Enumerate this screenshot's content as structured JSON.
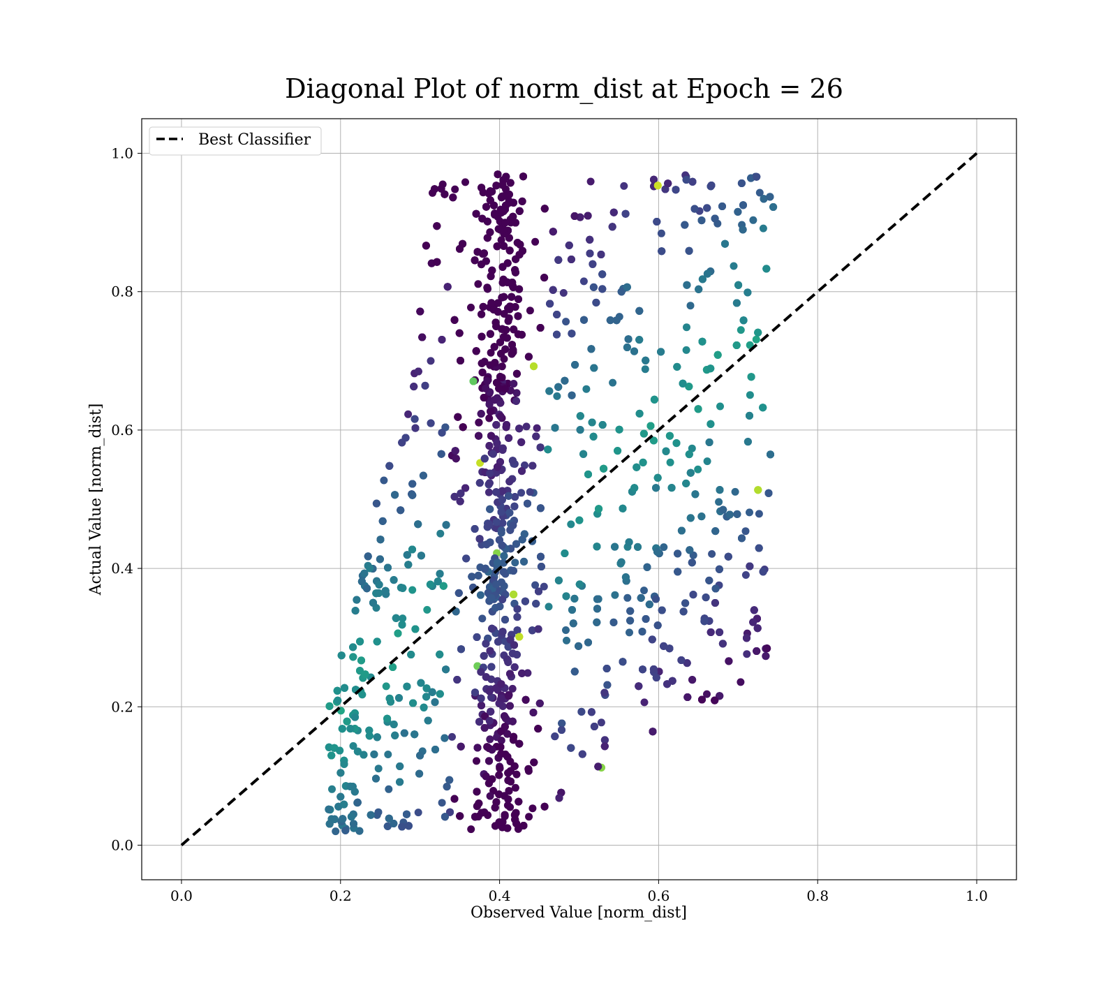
{
  "chart_data": {
    "type": "scatter",
    "title": "Diagonal Plot of norm_dist at Epoch = 26",
    "xlabel": "Observed Value [norm_dist]",
    "ylabel": "Actual Value [norm_dist]",
    "xlim": [
      -0.05,
      1.05
    ],
    "ylim": [
      -0.05,
      1.05
    ],
    "xticks": [
      "0.0",
      "0.2",
      "0.4",
      "0.6",
      "0.8",
      "1.0"
    ],
    "yticks": [
      "0.0",
      "0.2",
      "0.4",
      "0.6",
      "0.8",
      "1.0"
    ],
    "xtick_values": [
      0,
      0.2,
      0.4,
      0.6,
      0.8,
      1.0
    ],
    "ytick_values": [
      0,
      0.2,
      0.4,
      0.6,
      0.8,
      1.0
    ],
    "grid": true,
    "legend": {
      "position": "top-left",
      "entries": [
        "Best Classifier"
      ]
    },
    "reference_line": {
      "name": "Best Classifier",
      "x": [
        0,
        1
      ],
      "y": [
        0,
        1
      ],
      "style": "dashed",
      "color": "#000000"
    },
    "colormap": "viridis",
    "colors": {
      "dark": "#440154",
      "mid": "#31688e",
      "teal": "#35b779",
      "light": "#fde725"
    },
    "point_cloud": {
      "description_of_extent": "dense cloud from x≈0.18 to x≈0.76, y≈0.01 to y≈0.97",
      "core_points": [
        [
          0.18,
          0.18
        ],
        [
          0.19,
          0.1
        ],
        [
          0.2,
          0.28
        ],
        [
          0.22,
          0.05
        ],
        [
          0.24,
          0.32
        ],
        [
          0.25,
          0.15
        ],
        [
          0.27,
          0.45
        ],
        [
          0.28,
          0.22
        ],
        [
          0.3,
          0.6
        ],
        [
          0.32,
          0.85
        ],
        [
          0.33,
          0.1
        ],
        [
          0.35,
          0.72
        ],
        [
          0.36,
          0.4
        ],
        [
          0.38,
          0.92
        ],
        [
          0.4,
          0.05
        ],
        [
          0.4,
          0.55
        ],
        [
          0.41,
          0.97
        ],
        [
          0.42,
          0.3
        ],
        [
          0.44,
          0.8
        ],
        [
          0.45,
          0.15
        ],
        [
          0.47,
          0.65
        ],
        [
          0.5,
          0.45
        ],
        [
          0.52,
          0.85
        ],
        [
          0.53,
          0.25
        ],
        [
          0.55,
          0.6
        ],
        [
          0.57,
          0.92
        ],
        [
          0.58,
          0.35
        ],
        [
          0.6,
          0.75
        ],
        [
          0.62,
          0.22
        ],
        [
          0.63,
          0.55
        ],
        [
          0.65,
          0.88
        ],
        [
          0.67,
          0.3
        ],
        [
          0.68,
          0.65
        ],
        [
          0.7,
          0.45
        ],
        [
          0.72,
          0.97
        ],
        [
          0.73,
          0.7
        ],
        [
          0.74,
          0.5
        ],
        [
          0.75,
          0.85
        ],
        [
          0.76,
          0.82
        ]
      ]
    }
  }
}
